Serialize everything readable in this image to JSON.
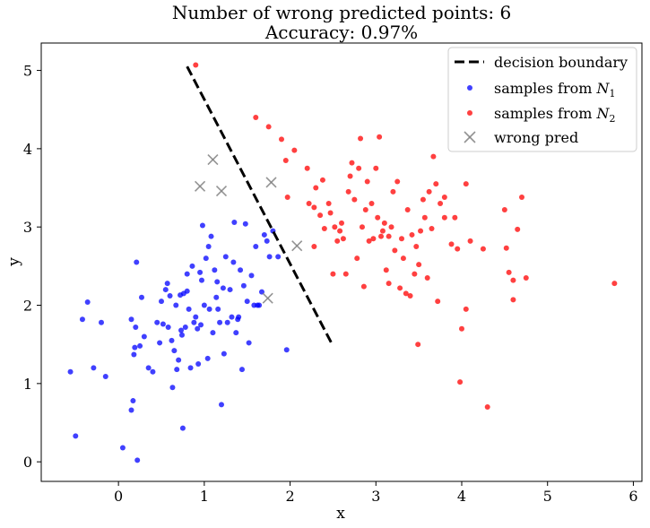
{
  "chart_data": {
    "type": "scatter",
    "title": "Number of wrong predicted points: 6",
    "subtitle": "Accuracy: 0.97%",
    "xlabel": "x",
    "ylabel": "y",
    "xlim": [
      -0.9,
      6.1
    ],
    "ylim": [
      -0.25,
      5.35
    ],
    "xticks": [
      "0",
      "1",
      "2",
      "3",
      "4",
      "5",
      "6"
    ],
    "yticks": [
      "0",
      "1",
      "2",
      "3",
      "4",
      "5"
    ],
    "grid": false,
    "legend_position": "top-right",
    "legend": [
      {
        "label": "decision boundary",
        "marker": "dashed-line",
        "color": "#000000"
      },
      {
        "label": "samples from ",
        "sub": "1",
        "marker": "dot",
        "color": "#0000ff"
      },
      {
        "label": "samples from ",
        "sub": "2",
        "marker": "dot",
        "color": "#ff0000"
      },
      {
        "label": "wrong pred",
        "marker": "x",
        "color": "#808080"
      }
    ],
    "boundary": {
      "x": [
        0.8,
        2.5
      ],
      "y": [
        5.05,
        1.48
      ]
    },
    "series": [
      {
        "name": "samples from N1",
        "color": "#0000ff",
        "points": [
          [
            -0.56,
            1.15
          ],
          [
            -0.5,
            0.33
          ],
          [
            -0.42,
            1.82
          ],
          [
            -0.36,
            2.04
          ],
          [
            -0.29,
            1.2
          ],
          [
            -0.2,
            1.78
          ],
          [
            -0.15,
            1.09
          ],
          [
            0.05,
            0.18
          ],
          [
            0.15,
            1.82
          ],
          [
            0.15,
            0.66
          ],
          [
            0.17,
            0.78
          ],
          [
            0.18,
            1.37
          ],
          [
            0.19,
            1.46
          ],
          [
            0.2,
            1.72
          ],
          [
            0.21,
            2.55
          ],
          [
            0.22,
            0.02
          ],
          [
            0.25,
            1.48
          ],
          [
            0.27,
            2.1
          ],
          [
            0.3,
            1.6
          ],
          [
            0.35,
            1.2
          ],
          [
            0.4,
            1.15
          ],
          [
            0.45,
            1.78
          ],
          [
            0.48,
            1.52
          ],
          [
            0.5,
            2.05
          ],
          [
            0.52,
            1.76
          ],
          [
            0.55,
            2.2
          ],
          [
            0.57,
            2.28
          ],
          [
            0.58,
            1.72
          ],
          [
            0.6,
            2.12
          ],
          [
            0.62,
            1.55
          ],
          [
            0.63,
            0.95
          ],
          [
            0.65,
            1.42
          ],
          [
            0.67,
            2.0
          ],
          [
            0.68,
            1.18
          ],
          [
            0.7,
            1.3
          ],
          [
            0.72,
            2.13
          ],
          [
            0.73,
            1.68
          ],
          [
            0.74,
            1.62
          ],
          [
            0.75,
            0.43
          ],
          [
            0.76,
            2.15
          ],
          [
            0.78,
            1.72
          ],
          [
            0.8,
            2.18
          ],
          [
            0.82,
            1.95
          ],
          [
            0.84,
            1.2
          ],
          [
            0.86,
            2.5
          ],
          [
            0.88,
            1.78
          ],
          [
            0.9,
            1.85
          ],
          [
            0.92,
            1.7
          ],
          [
            0.93,
            1.25
          ],
          [
            0.95,
            2.42
          ],
          [
            0.96,
            1.75
          ],
          [
            0.97,
            2.32
          ],
          [
            0.98,
            3.02
          ],
          [
            1.0,
            2.0
          ],
          [
            1.02,
            2.6
          ],
          [
            1.04,
            1.32
          ],
          [
            1.06,
            1.95
          ],
          [
            1.08,
            2.88
          ],
          [
            1.1,
            1.65
          ],
          [
            1.12,
            2.45
          ],
          [
            1.14,
            2.1
          ],
          [
            1.15,
            2.3
          ],
          [
            1.16,
            1.95
          ],
          [
            1.18,
            1.78
          ],
          [
            1.2,
            0.73
          ],
          [
            1.22,
            2.22
          ],
          [
            1.23,
            1.38
          ],
          [
            1.25,
            2.62
          ],
          [
            1.27,
            1.78
          ],
          [
            1.3,
            2.2
          ],
          [
            1.32,
            1.85
          ],
          [
            1.34,
            2.55
          ],
          [
            1.35,
            3.06
          ],
          [
            1.37,
            1.65
          ],
          [
            1.39,
            1.82
          ],
          [
            1.4,
            1.85
          ],
          [
            1.42,
            2.45
          ],
          [
            1.44,
            1.18
          ],
          [
            1.46,
            2.25
          ],
          [
            1.48,
            3.04
          ],
          [
            1.5,
            2.05
          ],
          [
            1.52,
            1.52
          ],
          [
            1.55,
            2.38
          ],
          [
            1.58,
            2.0
          ],
          [
            1.6,
            2.75
          ],
          [
            1.62,
            2.0
          ],
          [
            1.64,
            2.0
          ],
          [
            1.67,
            2.17
          ],
          [
            1.7,
            2.9
          ],
          [
            1.73,
            2.82
          ],
          [
            1.76,
            2.62
          ],
          [
            1.8,
            2.95
          ],
          [
            1.86,
            2.62
          ],
          [
            1.96,
            1.43
          ],
          [
            1.05,
            2.75
          ],
          [
            0.8,
            2.4
          ]
        ]
      },
      {
        "name": "samples from N2",
        "color": "#ff0000",
        "points": [
          [
            0.9,
            5.07
          ],
          [
            1.6,
            4.4
          ],
          [
            1.75,
            4.28
          ],
          [
            1.9,
            4.12
          ],
          [
            1.95,
            3.85
          ],
          [
            2.05,
            3.98
          ],
          [
            1.97,
            3.38
          ],
          [
            2.2,
            3.75
          ],
          [
            2.3,
            3.5
          ],
          [
            2.22,
            3.3
          ],
          [
            2.28,
            3.25
          ],
          [
            2.35,
            3.15
          ],
          [
            2.38,
            3.6
          ],
          [
            2.4,
            2.98
          ],
          [
            2.45,
            3.3
          ],
          [
            2.47,
            3.18
          ],
          [
            2.5,
            2.4
          ],
          [
            2.52,
            3.0
          ],
          [
            2.55,
            2.82
          ],
          [
            2.58,
            2.95
          ],
          [
            2.6,
            3.05
          ],
          [
            2.62,
            2.85
          ],
          [
            2.65,
            2.4
          ],
          [
            2.68,
            3.45
          ],
          [
            2.7,
            3.65
          ],
          [
            2.72,
            3.82
          ],
          [
            2.75,
            3.35
          ],
          [
            2.78,
            2.6
          ],
          [
            2.8,
            3.75
          ],
          [
            2.82,
            4.13
          ],
          [
            2.84,
            3.0
          ],
          [
            2.86,
            2.24
          ],
          [
            2.88,
            3.22
          ],
          [
            2.9,
            3.58
          ],
          [
            2.92,
            2.82
          ],
          [
            2.95,
            3.3
          ],
          [
            2.97,
            2.85
          ],
          [
            3.0,
            3.75
          ],
          [
            3.02,
            3.12
          ],
          [
            3.04,
            4.15
          ],
          [
            3.06,
            2.88
          ],
          [
            3.08,
            2.95
          ],
          [
            3.1,
            3.05
          ],
          [
            3.12,
            2.45
          ],
          [
            3.15,
            2.88
          ],
          [
            3.18,
            3.0
          ],
          [
            3.2,
            3.45
          ],
          [
            3.22,
            2.7
          ],
          [
            3.25,
            3.58
          ],
          [
            3.28,
            2.22
          ],
          [
            3.3,
            2.85
          ],
          [
            3.32,
            2.6
          ],
          [
            3.35,
            2.15
          ],
          [
            3.37,
            3.22
          ],
          [
            3.4,
            2.12
          ],
          [
            3.42,
            2.9
          ],
          [
            3.45,
            2.4
          ],
          [
            3.47,
            2.75
          ],
          [
            3.49,
            1.5
          ],
          [
            3.5,
            2.52
          ],
          [
            3.52,
            2.95
          ],
          [
            3.55,
            3.35
          ],
          [
            3.57,
            3.12
          ],
          [
            3.6,
            2.35
          ],
          [
            3.62,
            3.45
          ],
          [
            3.65,
            2.98
          ],
          [
            3.67,
            3.9
          ],
          [
            3.7,
            3.55
          ],
          [
            3.72,
            2.05
          ],
          [
            3.75,
            3.3
          ],
          [
            3.8,
            3.12
          ],
          [
            3.88,
            2.78
          ],
          [
            3.92,
            3.12
          ],
          [
            3.95,
            2.72
          ],
          [
            3.98,
            1.02
          ],
          [
            4.0,
            1.7
          ],
          [
            4.05,
            3.55
          ],
          [
            4.05,
            1.95
          ],
          [
            4.1,
            2.82
          ],
          [
            4.25,
            2.72
          ],
          [
            4.3,
            0.7
          ],
          [
            4.5,
            3.22
          ],
          [
            4.52,
            2.73
          ],
          [
            4.55,
            2.42
          ],
          [
            4.6,
            2.32
          ],
          [
            4.6,
            2.07
          ],
          [
            4.65,
            2.97
          ],
          [
            4.7,
            3.38
          ],
          [
            4.75,
            2.35
          ],
          [
            5.78,
            2.28
          ],
          [
            3.8,
            3.38
          ],
          [
            2.28,
            2.75
          ],
          [
            3.15,
            2.28
          ]
        ]
      },
      {
        "name": "wrong pred",
        "color": "#808080",
        "points": [
          [
            0.95,
            3.52
          ],
          [
            1.1,
            3.86
          ],
          [
            1.2,
            3.46
          ],
          [
            1.78,
            3.57
          ],
          [
            2.08,
            2.76
          ],
          [
            1.74,
            2.09
          ]
        ]
      }
    ]
  }
}
